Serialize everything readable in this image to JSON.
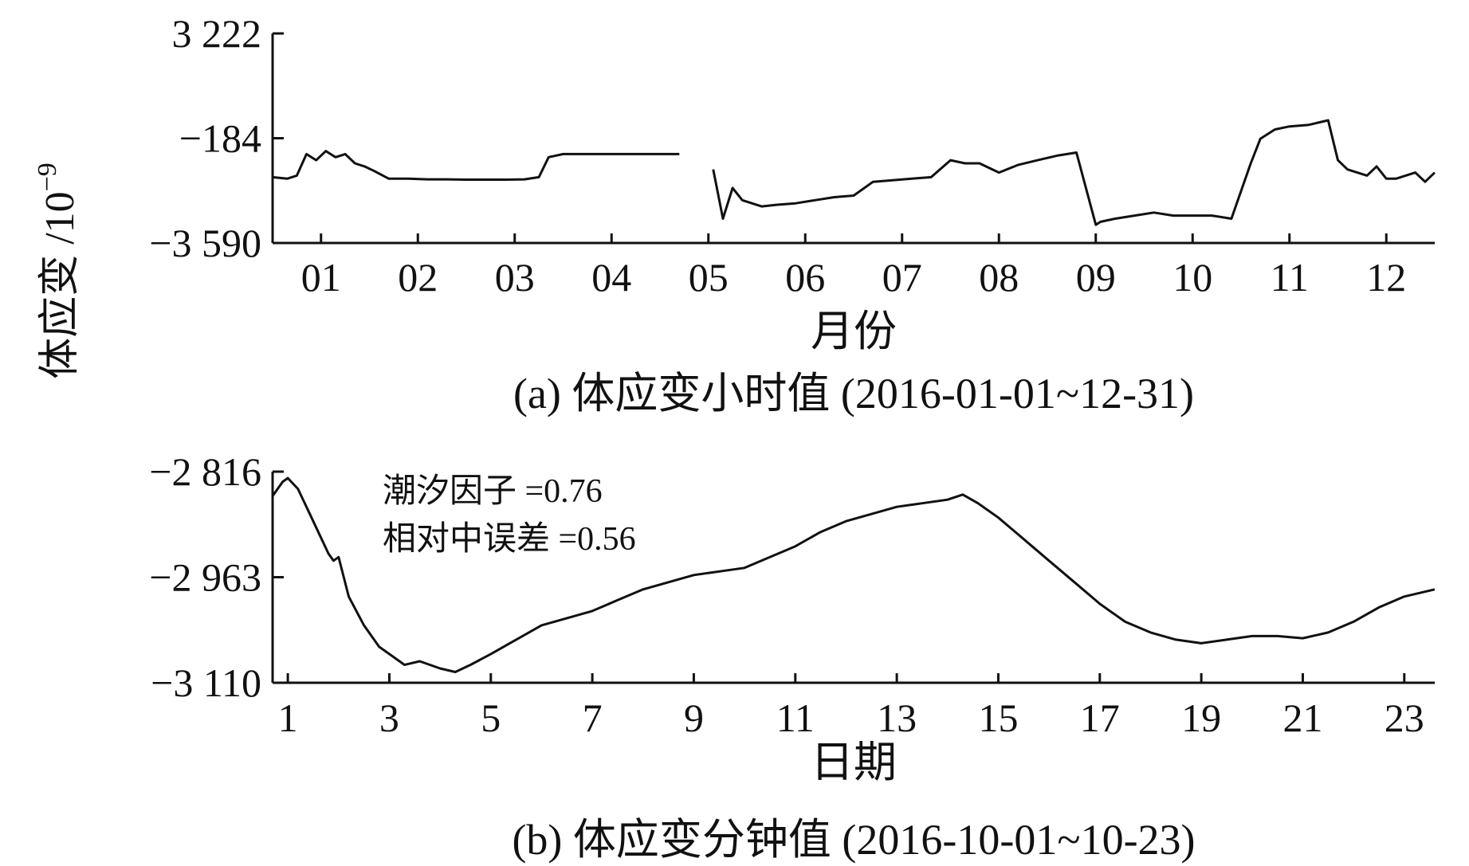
{
  "ylabel": "体应变 /10",
  "ylabel_exp": "−9",
  "chart_data": [
    {
      "id": "a",
      "type": "line",
      "caption": "(a) 体应变小时值 (2016-01-01~12-31)",
      "xlabel": "月份",
      "ylim": [
        -3590,
        3222
      ],
      "xlim": [
        0,
        12
      ],
      "yticks": [
        3222,
        -184,
        -3590
      ],
      "ytick_labels": [
        "3 222",
        "−184",
        "−3 590"
      ],
      "xticks": [
        0.5,
        1.5,
        2.5,
        3.5,
        4.5,
        5.5,
        6.5,
        7.5,
        8.5,
        9.5,
        10.5,
        11.5
      ],
      "xtick_labels": [
        "01",
        "02",
        "03",
        "04",
        "05",
        "06",
        "07",
        "08",
        "09",
        "10",
        "11",
        "12"
      ],
      "series": [
        {
          "x": [
            0.0,
            0.15,
            0.25,
            0.35,
            0.45,
            0.55,
            0.65,
            0.75,
            0.85,
            0.95,
            1.05,
            1.2,
            1.4,
            1.6,
            1.8,
            2.0,
            2.2,
            2.4,
            2.6,
            2.75,
            2.85,
            3.0,
            3.3,
            3.6,
            3.9,
            4.2,
            null,
            4.55,
            4.65,
            4.75,
            4.85,
            4.95,
            5.05,
            5.2,
            5.4,
            5.6,
            5.8,
            6.0,
            6.2,
            6.4,
            6.6,
            6.8,
            7.0,
            7.15,
            7.3,
            7.5,
            7.7,
            7.9,
            8.1,
            8.3,
            8.5,
            8.55,
            8.7,
            8.9,
            9.1,
            9.3,
            9.5,
            9.7,
            9.9,
            10.1,
            10.2,
            10.35,
            10.5,
            10.7,
            10.9,
            11.0,
            11.1,
            11.2,
            11.3,
            11.4,
            11.5,
            11.6,
            11.7,
            11.8,
            11.9,
            12.0
          ],
          "y": [
            -1450,
            -1500,
            -1400,
            -700,
            -900,
            -600,
            -800,
            -700,
            -1000,
            -1100,
            -1250,
            -1500,
            -1500,
            -1520,
            -1520,
            -1530,
            -1530,
            -1530,
            -1520,
            -1450,
            -800,
            -700,
            -700,
            -700,
            -700,
            -700,
            null,
            -1200,
            -2800,
            -1800,
            -2200,
            -2300,
            -2400,
            -2350,
            -2300,
            -2200,
            -2100,
            -2050,
            -1600,
            -1550,
            -1500,
            -1450,
            -900,
            -1000,
            -1000,
            -1300,
            -1050,
            -900,
            -750,
            -650,
            -3000,
            -2900,
            -2800,
            -2700,
            -2600,
            -2700,
            -2700,
            -2700,
            -2800,
            -1000,
            -200,
            100,
            200,
            250,
            400,
            -900,
            -1200,
            -1300,
            -1400,
            -1100,
            -1500,
            -1500,
            -1400,
            -1300,
            -1600,
            -1300
          ]
        }
      ]
    },
    {
      "id": "b",
      "type": "line",
      "caption": "(b) 体应变分钟值 (2016-10-01~10-23)",
      "xlabel": "日期",
      "ylim": [
        -3110,
        -2816
      ],
      "xlim": [
        0.7,
        23.6
      ],
      "yticks": [
        -2816,
        -2963,
        -3110
      ],
      "ytick_labels": [
        "−2 816",
        "−2 963",
        "−3 110"
      ],
      "xticks": [
        1,
        3,
        5,
        7,
        9,
        11,
        13,
        15,
        17,
        19,
        21,
        23
      ],
      "xtick_labels": [
        "1",
        "3",
        "5",
        "7",
        "9",
        "11",
        "13",
        "15",
        "17",
        "19",
        "21",
        "23"
      ],
      "annotations": [
        "潮汐因子 =0.76",
        "相对中误差 =0.56"
      ],
      "series": [
        {
          "x": [
            0.7,
            0.9,
            1.0,
            1.2,
            1.4,
            1.6,
            1.8,
            1.9,
            2.0,
            2.2,
            2.5,
            2.8,
            3.0,
            3.3,
            3.6,
            4.0,
            4.3,
            4.6,
            5.0,
            5.5,
            6.0,
            6.5,
            7.0,
            7.5,
            8.0,
            8.5,
            9.0,
            9.5,
            10.0,
            10.5,
            11.0,
            11.5,
            12.0,
            12.5,
            13.0,
            13.5,
            14.0,
            14.3,
            14.6,
            15.0,
            15.5,
            16.0,
            16.5,
            17.0,
            17.5,
            18.0,
            18.5,
            19.0,
            19.5,
            20.0,
            20.5,
            21.0,
            21.5,
            22.0,
            22.5,
            23.0,
            23.3,
            23.6
          ],
          "y": [
            -2850,
            -2830,
            -2825,
            -2840,
            -2870,
            -2900,
            -2930,
            -2940,
            -2935,
            -2990,
            -3030,
            -3060,
            -3070,
            -3085,
            -3080,
            -3090,
            -3095,
            -3085,
            -3070,
            -3050,
            -3030,
            -3020,
            -3010,
            -2995,
            -2980,
            -2970,
            -2960,
            -2955,
            -2950,
            -2935,
            -2920,
            -2900,
            -2885,
            -2875,
            -2865,
            -2860,
            -2855,
            -2848,
            -2860,
            -2880,
            -2910,
            -2940,
            -2970,
            -3000,
            -3025,
            -3040,
            -3050,
            -3055,
            -3050,
            -3045,
            -3045,
            -3048,
            -3040,
            -3025,
            -3005,
            -2990,
            -2985,
            -2980
          ]
        }
      ]
    }
  ]
}
